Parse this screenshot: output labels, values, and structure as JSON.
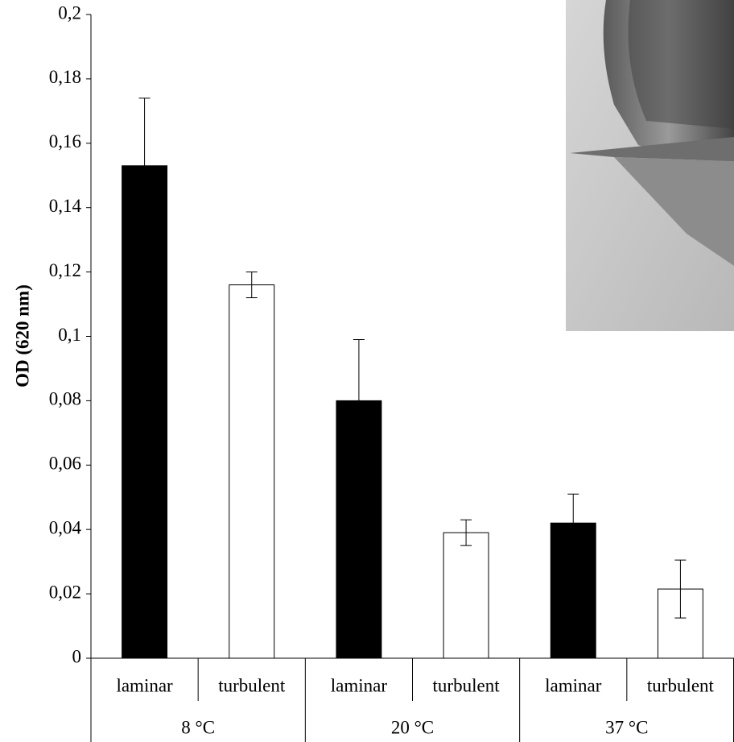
{
  "chart_data": {
    "type": "bar",
    "y_label": "OD (620 nm)",
    "categories": [
      "8 °C",
      "20 °C",
      "37 °C"
    ],
    "series": [
      {
        "name": "laminar",
        "color": "#000000",
        "values": [
          0.153,
          0.08,
          0.042
        ],
        "errors": [
          0.021,
          0.019,
          0.009
        ]
      },
      {
        "name": "turbulent",
        "color": "#ffffff",
        "values": [
          0.116,
          0.039,
          0.0215
        ],
        "errors": [
          0.004,
          0.004,
          0.009
        ]
      }
    ],
    "ylim": [
      0,
      0.2
    ],
    "yticks": [
      0,
      {
        "value": 0.02,
        "label": "0,02"
      },
      {
        "value": 0.04,
        "label": "0,04"
      },
      {
        "value": 0.06,
        "label": "0,06"
      },
      {
        "value": 0.08,
        "label": "0,08"
      },
      {
        "value": 0.1,
        "label": "0,1"
      },
      {
        "value": 0.12,
        "label": "0,12"
      },
      {
        "value": 0.14,
        "label": "0,14"
      },
      {
        "value": 0.16,
        "label": "0,16"
      },
      {
        "value": 0.18,
        "label": "0,18"
      },
      {
        "value": 0.2,
        "label": "0,2"
      }
    ],
    "grid": false
  }
}
